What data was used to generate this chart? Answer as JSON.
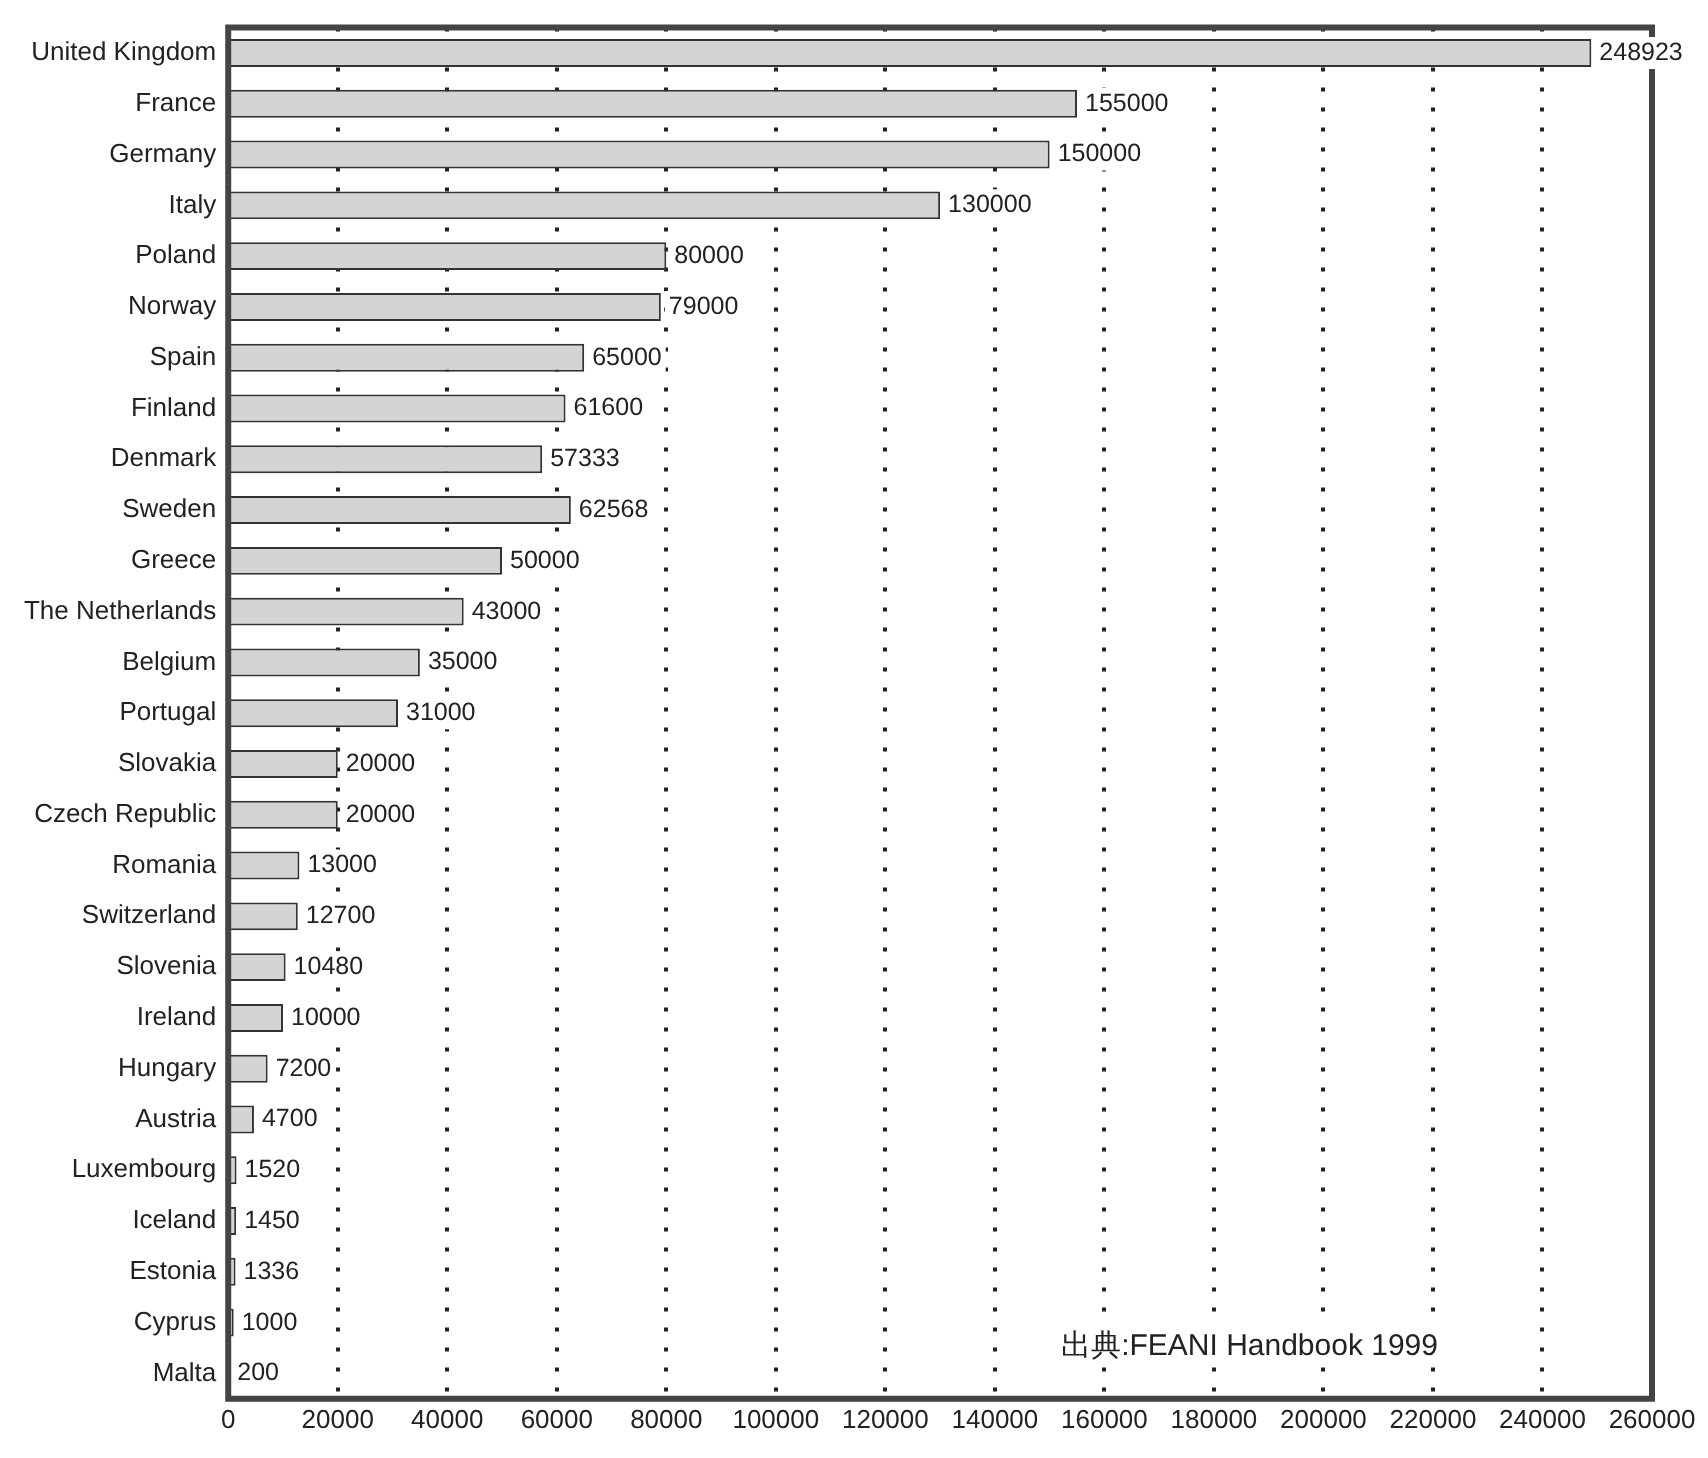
{
  "chart_data": {
    "type": "bar",
    "orientation": "horizontal",
    "categories": [
      "United Kingdom",
      "France",
      "Germany",
      "Italy",
      "Poland",
      "Norway",
      "Spain",
      "Finland",
      "Denmark",
      "Sweden",
      "Greece",
      "The Netherlands",
      "Belgium",
      "Portugal",
      "Slovakia",
      "Czech Republic",
      "Romania",
      "Switzerland",
      "Slovenia",
      "Ireland",
      "Hungary",
      "Austria",
      "Luxembourg",
      "Iceland",
      "Estonia",
      "Cyprus",
      "Malta"
    ],
    "values": [
      248923,
      155000,
      150000,
      130000,
      80000,
      79000,
      65000,
      61600,
      57333,
      62568,
      50000,
      43000,
      35000,
      31000,
      20000,
      20000,
      13000,
      12700,
      10480,
      10000,
      7200,
      4700,
      1520,
      1450,
      1336,
      1000,
      200
    ],
    "color": "#d4d4d4",
    "xlim": [
      0,
      260000
    ],
    "xticks": [
      0,
      20000,
      40000,
      60000,
      80000,
      100000,
      120000,
      140000,
      160000,
      180000,
      200000,
      220000,
      240000,
      260000
    ],
    "grid": "x",
    "data_labels": true,
    "legend": false,
    "annotations": [
      "出典:FEANI Handbook 1999"
    ]
  }
}
